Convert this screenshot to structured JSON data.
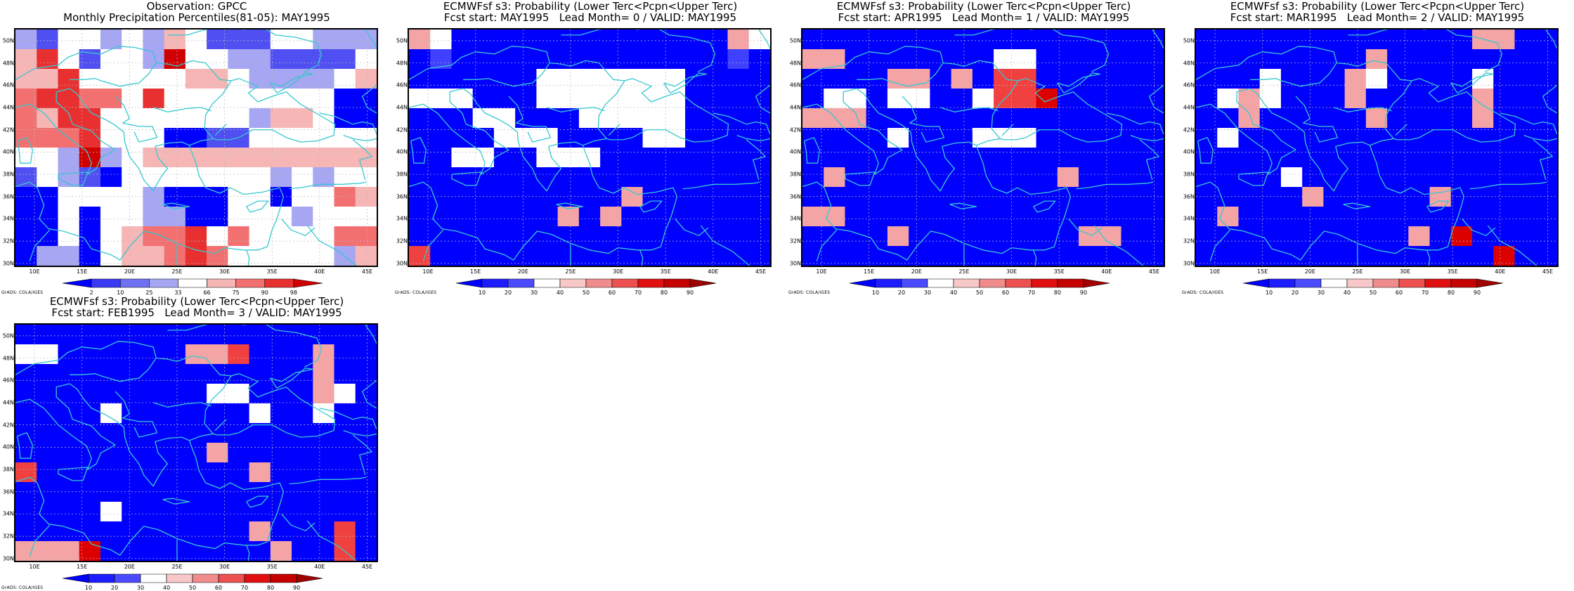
{
  "credit": "GrADS: COLA/IGES",
  "lat_labels": [
    "50N",
    "48N",
    "46N",
    "44N",
    "42N",
    "40N",
    "38N",
    "36N",
    "34N",
    "32N",
    "30N"
  ],
  "lon_labels": [
    "10E",
    "15E",
    "20E",
    "25E",
    "30E",
    "35E",
    "40E",
    "45E"
  ],
  "map_extent": {
    "lon": [
      8,
      46
    ],
    "lat": [
      29.8,
      51
    ]
  },
  "colors": {
    "coast": "#36c8d0",
    "frame": "#000000",
    "grid": "#bbbbbb"
  },
  "palettes": {
    "obs": [
      "#0000ff",
      "#5050f2",
      "#a6a6f2",
      "#ffffff",
      "#f6b6b6",
      "#f27070",
      "#e83030",
      "#d00000"
    ],
    "prob": [
      "#0000ff",
      "#4040ff",
      "#ffffff",
      "#ffffff",
      "#f4a4a4",
      "#f04040",
      "#dc0000",
      "#a00000"
    ]
  },
  "colorbars": {
    "obs": {
      "levels": [
        "2",
        "10",
        "25",
        "33",
        "66",
        "75",
        "90",
        "98"
      ],
      "colors": [
        "#0000ff",
        "#3a3af4",
        "#7070f2",
        "#a6a6f2",
        "#ffffff",
        "#f6b6b6",
        "#f27070",
        "#e83030",
        "#d00000"
      ]
    },
    "prob": {
      "levels": [
        "10",
        "20",
        "30",
        "40",
        "50",
        "60",
        "70",
        "80",
        "90"
      ],
      "colors": [
        "#0000ff",
        "#1c1cff",
        "#4a4aff",
        "#ffffff",
        "#f8c8c8",
        "#f08c8c",
        "#ec5050",
        "#e01010",
        "#c40000",
        "#a00000"
      ]
    }
  },
  "panels": [
    {
      "title1": "Observation: GPCC",
      "title2": "Monthly Precipitation Percentiles(81-05): MAY1995",
      "palette": "obs",
      "grid": [
        "21332324311133222",
        "46313327332211113",
        "44633333443222234",
        "56655363333333300",
        "54663333333244300",
        "55563330011333333",
        "33272344444444444",
        "13210333333323233",
        "00333320003303354",
        "00303322003332333",
        "00303455635333355",
        "02203445653333324"
      ]
    },
    {
      "title1": "ECMWFsf s3: Probability (Lower Terc<Pcpn<Upper Terc)",
      "title2": "Fcst start: MAY1995   Lead Month= 0 / VALID: MAY1995",
      "palette": "prob",
      "grid": [
        "43000000000000042",
        "01000000000000010",
        "00000022222220000",
        "22200022222220000",
        "00022000222220000",
        "00002220000220000",
        "00220022200000000",
        "00000000000000000",
        "00000000004000000",
        "00000004040000000",
        "00000000000000000",
        "50000000000000000"
      ]
    },
    {
      "title1": "ECMWFsf s3: Probability (Lower Terc<Pcpn<Upper Terc)",
      "title2": "Fcst start: APR1995   Lead Month= 1 / VALID: MAY1995",
      "palette": "prob",
      "grid": [
        "00000000000000000",
        "44000000022000000",
        "00004404055000000",
        "02202200255600000",
        "44400000000000000",
        "00002000222000000",
        "00000000000000000",
        "04000000000040000",
        "00000000000000000",
        "44000000000000000",
        "00004000000004400",
        "00000000000000000"
      ]
    },
    {
      "title1": "ECMWFsf s3: Probability (Lower Terc<Pcpn<Upper Terc)",
      "title2": "Fcst start: MAR1995   Lead Month= 2 / VALID: MAY1995",
      "palette": "prob",
      "grid": [
        "00000000000004400",
        "00000000400000000",
        "00020004200002000",
        "02420004000004000",
        "00400000400004000",
        "02000000000000000",
        "00000000000000000",
        "00002000000000000",
        "00000400000400000",
        "04000000000000000",
        "00000000004060000",
        "00000000000000600"
      ]
    },
    {
      "title1": "ECMWFsf s3: Probability (Lower Terc<Pcpn<Upper Terc)",
      "title2": "Fcst start: FEB1995   Lead Month= 3 / VALID: MAY1995",
      "palette": "prob",
      "grid": [
        "00000000000000000",
        "22000000445000400",
        "00000000000000400",
        "00000000022000420",
        "00002000000200200",
        "00000000000000000",
        "00000000040000000",
        "50000000000400000",
        "00000000000000000",
        "00002000000000000",
        "00000000000400050",
        "44460000000040050"
      ]
    }
  ]
}
